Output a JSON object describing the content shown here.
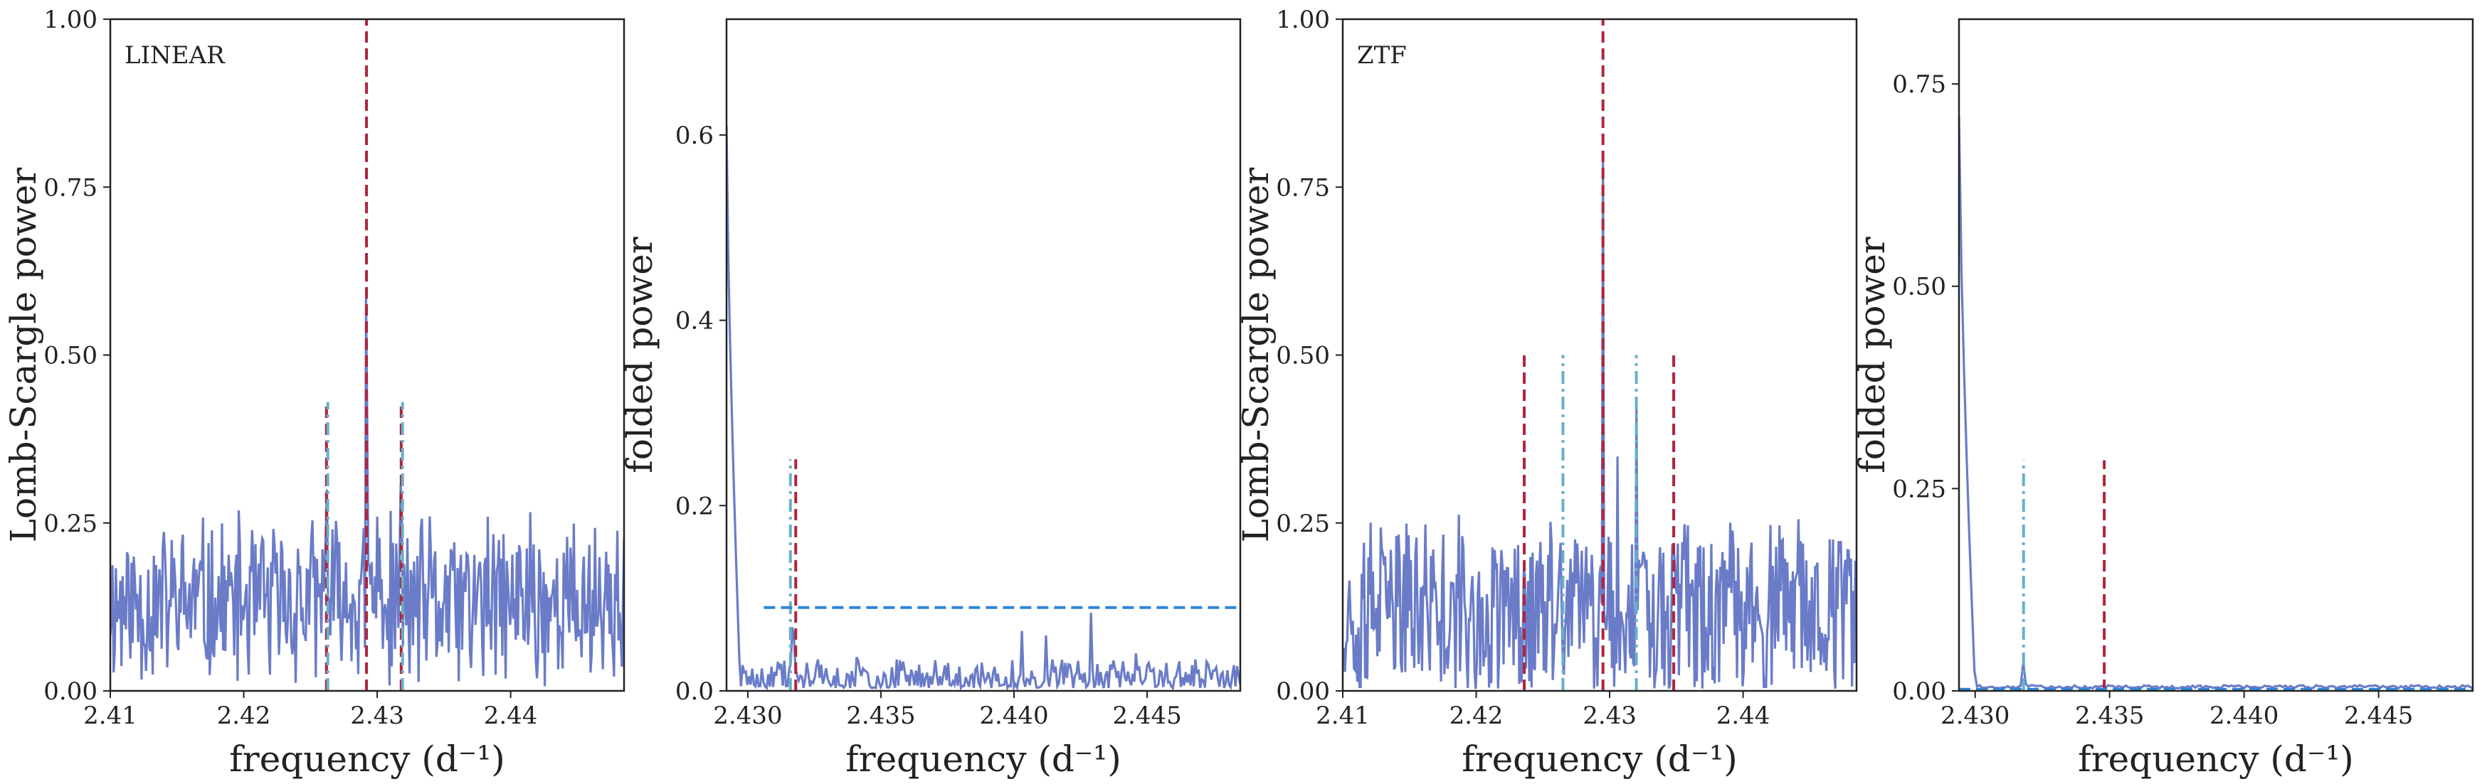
{
  "colors": {
    "series": "#6a7cc8",
    "red_dashed": "#b0243c",
    "cyan_dashdot": "#67b0c8",
    "blue_threshold": "#2f86d6"
  },
  "chart_data": [
    {
      "type": "line",
      "panel_label": "LINEAR",
      "xlabel": "frequency (d⁻¹)",
      "ylabel": "Lomb-Scargle power",
      "xlim": [
        2.41,
        2.4485
      ],
      "ylim": [
        0.0,
        1.0
      ],
      "xticks": [
        2.41,
        2.42,
        2.43,
        2.44
      ],
      "xtick_labels": [
        "2.41",
        "2.42",
        "2.43",
        "2.44"
      ],
      "yticks": [
        0.0,
        0.25,
        0.5,
        0.75,
        1.0
      ],
      "ytick_labels": [
        "0.00",
        "0.25",
        "0.50",
        "0.75",
        "1.00"
      ],
      "grid": false,
      "noise": {
        "seed": 11,
        "base": 0.13,
        "amp": 0.12,
        "points": 460
      },
      "peaks": [
        {
          "x": 2.4292,
          "y": 0.79
        },
        {
          "x": 2.4318,
          "y": 0.46
        },
        {
          "x": 2.4262,
          "y": 0.43
        },
        {
          "x": 2.43,
          "y": 0.26
        },
        {
          "x": 2.4415,
          "y": 0.34
        }
      ],
      "vlines": [
        {
          "x": 2.4292,
          "y0": 0.0,
          "y1": 1.0,
          "style": "red_dashed"
        },
        {
          "x": 2.4262,
          "y0": 0.0,
          "y1": 0.43,
          "style": "red_dashed"
        },
        {
          "x": 2.4318,
          "y0": 0.0,
          "y1": 0.43,
          "style": "red_dashed"
        },
        {
          "x": 2.4263,
          "y0": 0.0,
          "y1": 0.43,
          "style": "cyan_dashdot"
        },
        {
          "x": 2.4319,
          "y0": 0.0,
          "y1": 0.43,
          "style": "cyan_dashdot"
        }
      ],
      "hlines": []
    },
    {
      "type": "line",
      "panel_label": "",
      "xlabel": "frequency (d⁻¹)",
      "ylabel": "folded power",
      "xlim": [
        2.4292,
        2.4485
      ],
      "ylim": [
        0.0,
        0.725
      ],
      "xticks": [
        2.43,
        2.435,
        2.44,
        2.445
      ],
      "xtick_labels": [
        "2.430",
        "2.435",
        "2.440",
        "2.445"
      ],
      "yticks": [
        0.0,
        0.2,
        0.4,
        0.6
      ],
      "ytick_labels": [
        "0.0",
        "0.2",
        "0.4",
        "0.6"
      ],
      "grid": false,
      "noise": {
        "seed": 23,
        "base": 0.012,
        "amp": 0.022,
        "points": 320
      },
      "head": {
        "x0": 2.4292,
        "y0": 0.61,
        "x1": 2.4297,
        "y1": 0.02
      },
      "peaks": [
        {
          "x": 2.4317,
          "y": 0.1
        },
        {
          "x": 2.4429,
          "y": 0.088
        },
        {
          "x": 2.4403,
          "y": 0.065
        },
        {
          "x": 2.4412,
          "y": 0.06
        },
        {
          "x": 2.4446,
          "y": 0.05
        }
      ],
      "vlines": [
        {
          "x": 2.4316,
          "y0": 0.0,
          "y1": 0.25,
          "style": "cyan_dashdot"
        },
        {
          "x": 2.4318,
          "y0": 0.0,
          "y1": 0.25,
          "style": "red_dashed"
        }
      ],
      "hlines": [
        {
          "y": 0.09,
          "x0": 2.4306,
          "x1": 2.4485,
          "style": "blue_threshold"
        }
      ]
    },
    {
      "type": "line",
      "panel_label": "ZTF",
      "xlabel": "frequency (d⁻¹)",
      "ylabel": "Lomb-Scargle power",
      "xlim": [
        2.41,
        2.4485
      ],
      "ylim": [
        0.0,
        1.0
      ],
      "xticks": [
        2.41,
        2.42,
        2.43,
        2.44
      ],
      "xtick_labels": [
        "2.41",
        "2.42",
        "2.43",
        "2.44"
      ],
      "yticks": [
        0.0,
        0.25,
        0.5,
        0.75,
        1.0
      ],
      "ytick_labels": [
        "0.00",
        "0.25",
        "0.50",
        "0.75",
        "1.00"
      ],
      "grid": false,
      "noise": {
        "seed": 37,
        "base": 0.12,
        "amp": 0.13,
        "points": 460
      },
      "peaks": [
        {
          "x": 2.4295,
          "y": 0.79
        },
        {
          "x": 2.432,
          "y": 0.44
        },
        {
          "x": 2.4306,
          "y": 0.36
        },
        {
          "x": 2.4262,
          "y": 0.27
        },
        {
          "x": 2.4236,
          "y": 0.28
        },
        {
          "x": 2.4348,
          "y": 0.26
        }
      ],
      "vlines": [
        {
          "x": 2.4295,
          "y0": 0.0,
          "y1": 1.0,
          "style": "red_dashed"
        },
        {
          "x": 2.4236,
          "y0": 0.0,
          "y1": 0.5,
          "style": "red_dashed"
        },
        {
          "x": 2.4348,
          "y0": 0.0,
          "y1": 0.5,
          "style": "red_dashed"
        },
        {
          "x": 2.4265,
          "y0": 0.0,
          "y1": 0.5,
          "style": "cyan_dashdot"
        },
        {
          "x": 2.432,
          "y0": 0.0,
          "y1": 0.5,
          "style": "cyan_dashdot"
        }
      ],
      "hlines": []
    },
    {
      "type": "line",
      "panel_label": "",
      "xlabel": "frequency (d⁻¹)",
      "ylabel": "folded power",
      "xlim": [
        2.4294,
        2.4485
      ],
      "ylim": [
        0.0,
        0.83
      ],
      "xticks": [
        2.43,
        2.435,
        2.44,
        2.445
      ],
      "xtick_labels": [
        "2.430",
        "2.435",
        "2.440",
        "2.445"
      ],
      "yticks": [
        0.0,
        0.25,
        0.5,
        0.75
      ],
      "ytick_labels": [
        "0.00",
        "0.25",
        "0.50",
        "0.75"
      ],
      "grid": false,
      "noise": {
        "seed": 5,
        "base": 0.002,
        "amp": 0.0,
        "points": 200
      },
      "head": {
        "x0": 2.4294,
        "y0": 0.71,
        "x1": 2.43,
        "y1": 0.002
      },
      "peaks": [
        {
          "x": 2.4318,
          "y": 0.036
        }
      ],
      "vlines": [
        {
          "x": 2.4318,
          "y0": 0.0,
          "y1": 0.285,
          "style": "cyan_dashdot"
        },
        {
          "x": 2.4348,
          "y0": 0.0,
          "y1": 0.285,
          "style": "red_dashed"
        }
      ],
      "hlines": [
        {
          "y": 0.002,
          "x0": 2.4294,
          "x1": 2.4485,
          "style": "blue_threshold"
        }
      ]
    }
  ]
}
